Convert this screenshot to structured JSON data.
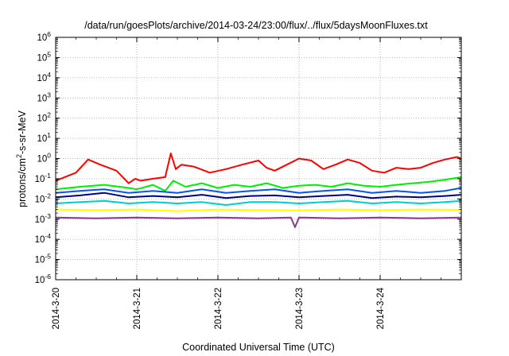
{
  "chart_data": {
    "type": "line",
    "title": "/data/run/goesPlots/archive/2014-03-24/23:00/flux/../flux/5daysMoonFluxes.txt",
    "xlabel": "Coordinated Universal Time (UTC)",
    "ylabel": {
      "pre": "protons/cm",
      "sup": "2",
      "post": "-s-sr-MeV"
    },
    "x_ticks": [
      "2014-3-20",
      "2014-3-21",
      "2014-3-22",
      "2014-3-23",
      "2014-3-24"
    ],
    "x_range_days": [
      0,
      5
    ],
    "y_scale": "log",
    "y_ticks_exp": [
      -6,
      -5,
      -4,
      -3,
      -2,
      -1,
      0,
      1,
      2,
      3,
      4,
      5,
      6
    ],
    "ylim": [
      1e-06,
      1000000.0
    ],
    "grid": true,
    "series": [
      {
        "color": "#ff0000",
        "x": [
          0.0,
          0.25,
          0.4,
          0.55,
          0.75,
          0.9,
          0.98,
          1.05,
          1.2,
          1.35,
          1.42,
          1.48,
          1.55,
          1.7,
          1.9,
          2.1,
          2.3,
          2.5,
          2.6,
          2.7,
          2.85,
          3.0,
          3.15,
          3.3,
          3.45,
          3.6,
          3.75,
          3.9,
          4.05,
          4.2,
          4.35,
          4.5,
          4.65,
          4.8,
          4.95,
          5.0
        ],
        "values": [
          0.08,
          0.2,
          0.9,
          0.5,
          0.25,
          0.06,
          0.1,
          0.08,
          0.1,
          0.12,
          1.8,
          0.3,
          0.5,
          0.4,
          0.2,
          0.3,
          0.5,
          0.8,
          0.35,
          0.25,
          0.5,
          1.0,
          0.8,
          0.3,
          0.5,
          0.9,
          0.6,
          0.25,
          0.2,
          0.35,
          0.3,
          0.35,
          0.6,
          0.9,
          1.2,
          1.0
        ]
      },
      {
        "color": "#00ee00",
        "x": [
          0.0,
          0.3,
          0.6,
          0.9,
          1.0,
          1.2,
          1.35,
          1.45,
          1.6,
          1.8,
          2.0,
          2.2,
          2.4,
          2.6,
          2.8,
          3.0,
          3.2,
          3.4,
          3.6,
          3.8,
          4.0,
          4.2,
          4.4,
          4.6,
          4.8,
          5.0
        ],
        "values": [
          0.03,
          0.04,
          0.05,
          0.035,
          0.03,
          0.05,
          0.025,
          0.08,
          0.04,
          0.06,
          0.035,
          0.05,
          0.04,
          0.06,
          0.035,
          0.045,
          0.05,
          0.04,
          0.06,
          0.045,
          0.04,
          0.05,
          0.06,
          0.07,
          0.09,
          0.12
        ]
      },
      {
        "color": "#0055ff",
        "x": [
          0.0,
          0.3,
          0.6,
          0.9,
          1.2,
          1.5,
          1.8,
          2.1,
          2.4,
          2.7,
          3.0,
          3.3,
          3.6,
          3.9,
          4.2,
          4.5,
          4.8,
          5.0
        ],
        "values": [
          0.02,
          0.025,
          0.03,
          0.02,
          0.025,
          0.02,
          0.03,
          0.02,
          0.025,
          0.03,
          0.02,
          0.025,
          0.03,
          0.02,
          0.025,
          0.02,
          0.025,
          0.035
        ]
      },
      {
        "color": "#000088",
        "x": [
          0.0,
          0.3,
          0.6,
          0.9,
          1.2,
          1.5,
          1.8,
          2.1,
          2.4,
          2.7,
          3.0,
          3.3,
          3.6,
          3.9,
          4.2,
          4.5,
          4.8,
          5.0
        ],
        "values": [
          0.012,
          0.015,
          0.02,
          0.012,
          0.014,
          0.012,
          0.016,
          0.011,
          0.014,
          0.015,
          0.012,
          0.014,
          0.016,
          0.011,
          0.013,
          0.012,
          0.014,
          0.016
        ]
      },
      {
        "color": "#00cccc",
        "x": [
          0.0,
          0.3,
          0.6,
          0.9,
          1.2,
          1.5,
          1.8,
          2.1,
          2.4,
          2.7,
          3.0,
          3.3,
          3.6,
          3.9,
          4.2,
          4.5,
          4.8,
          5.0
        ],
        "values": [
          0.006,
          0.007,
          0.008,
          0.006,
          0.007,
          0.006,
          0.007,
          0.005,
          0.007,
          0.007,
          0.006,
          0.007,
          0.008,
          0.006,
          0.007,
          0.006,
          0.007,
          0.008
        ]
      },
      {
        "color": "#ffff00",
        "x": [
          0.0,
          0.5,
          1.0,
          1.5,
          2.0,
          2.5,
          3.0,
          3.5,
          4.0,
          4.5,
          5.0
        ],
        "values": [
          0.003,
          0.0028,
          0.003,
          0.0025,
          0.003,
          0.0028,
          0.0027,
          0.003,
          0.0028,
          0.003,
          0.0029
        ]
      },
      {
        "color": "#8b3a8b",
        "x": [
          0.0,
          0.5,
          1.0,
          1.5,
          2.0,
          2.5,
          2.9,
          2.95,
          3.0,
          3.5,
          4.0,
          4.5,
          5.0
        ],
        "values": [
          0.0012,
          0.0011,
          0.0012,
          0.0011,
          0.0012,
          0.0011,
          0.0012,
          0.0004,
          0.0012,
          0.0011,
          0.0012,
          0.0011,
          0.0012
        ]
      }
    ]
  }
}
